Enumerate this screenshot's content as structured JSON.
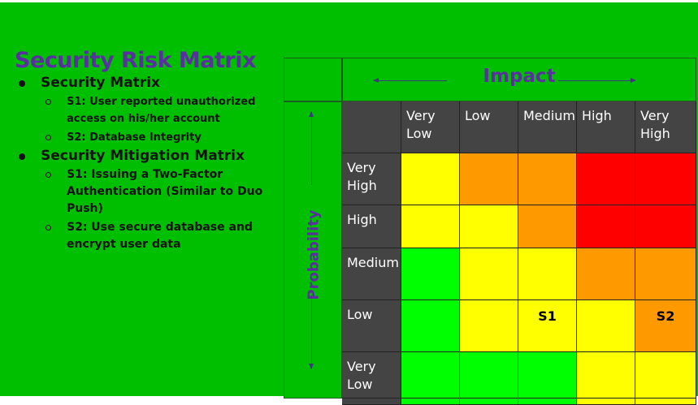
{
  "title": "Security Risk Matrix",
  "bullets": [
    {
      "text": "Security Matrix",
      "sub": [
        "S1: User reported unauthorized access on his/her account",
        "S2: Database Integrity"
      ]
    },
    {
      "text": "Security Mitigation Matrix",
      "sub": [
        "S1: Issuing a Two-Factor Authentication (Similar to Duo Push)",
        "S2: Use secure database and encrypt user data"
      ]
    }
  ],
  "matrix": {
    "impact_label": "Impact",
    "probability_label": "Probability",
    "impact_levels": [
      "Very Low",
      "Low",
      "Medium",
      "High",
      "Very High"
    ],
    "probability_levels": [
      "Very High",
      "High",
      "Medium",
      "Low",
      "Very Low"
    ],
    "colors": {
      "green": "#00ff00",
      "yellow": "#ffff00",
      "orange": "#ff9900",
      "red": "#ff0000",
      "header": "#444444",
      "background": "#00bf00",
      "title": "#5a2fa0"
    },
    "rows": [
      [
        "yellow",
        "orange",
        "orange",
        "red",
        "red"
      ],
      [
        "yellow",
        "yellow",
        "orange",
        "red",
        "red"
      ],
      [
        "green",
        "yellow",
        "yellow",
        "orange",
        "orange"
      ],
      [
        "green",
        "yellow",
        "yellow",
        "yellow",
        "orange"
      ],
      [
        "green",
        "green",
        "green",
        "yellow",
        "yellow"
      ]
    ],
    "markers": [
      {
        "label": "S1",
        "row": 3,
        "col": 2
      },
      {
        "label": "S2",
        "row": 3,
        "col": 4
      }
    ]
  }
}
